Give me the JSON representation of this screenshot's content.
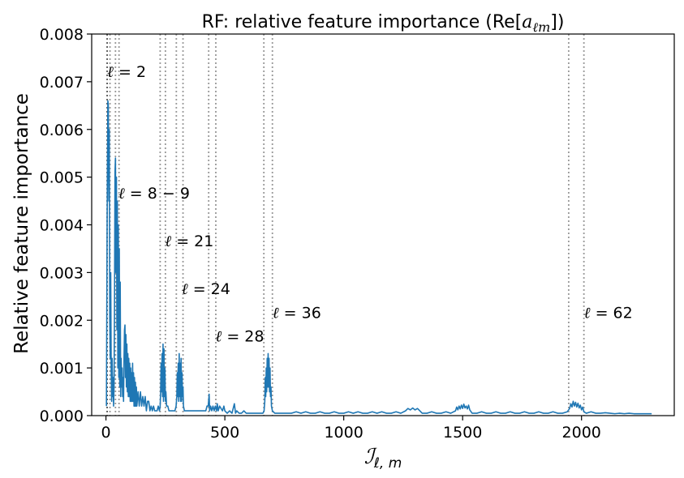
{
  "chart_data": {
    "type": "line",
    "title_prefix": "RF: relative feature importance (Re[",
    "title_var": "a",
    "title_sub": "ℓm",
    "title_suffix": "])",
    "ylabel": "Relative feature importance",
    "xlabel_symbol": "ℐ",
    "xlabel_sub": "ℓ, m",
    "xlim": [
      -60,
      2390
    ],
    "ylim": [
      0,
      0.008
    ],
    "xticks": [
      0,
      500,
      1000,
      1500,
      2000
    ],
    "yticks": [
      0.0,
      0.001,
      0.002,
      0.003,
      0.004,
      0.005,
      0.006,
      0.007,
      0.008
    ],
    "ytick_labels": [
      "0.000",
      "0.001",
      "0.002",
      "0.003",
      "0.004",
      "0.005",
      "0.006",
      "0.007",
      "0.008"
    ],
    "xtick_labels": [
      "0",
      "500",
      "1000",
      "1500",
      "2000"
    ],
    "grid": false,
    "series": [
      {
        "color": "#1f77b4",
        "points": [
          [
            2,
            0.0002
          ],
          [
            5,
            0.0041
          ],
          [
            8,
            0.0066
          ],
          [
            10,
            0.0065
          ],
          [
            12,
            0.0045
          ],
          [
            14,
            0.006
          ],
          [
            16,
            0.002
          ],
          [
            18,
            0.0012
          ],
          [
            20,
            0.003
          ],
          [
            22,
            0.001
          ],
          [
            24,
            0.0003
          ],
          [
            26,
            0.0012
          ],
          [
            28,
            0.0004
          ],
          [
            30,
            0.0008
          ],
          [
            32,
            0.0002
          ],
          [
            34,
            0.0006
          ],
          [
            36,
            0.0023
          ],
          [
            38,
            0.0051
          ],
          [
            40,
            0.0054
          ],
          [
            42,
            0.003
          ],
          [
            44,
            0.005
          ],
          [
            46,
            0.0018
          ],
          [
            48,
            0.0045
          ],
          [
            50,
            0.001
          ],
          [
            52,
            0.004
          ],
          [
            54,
            0.0008
          ],
          [
            56,
            0.0035
          ],
          [
            58,
            0.0006
          ],
          [
            60,
            0.0028
          ],
          [
            62,
            0.0004
          ],
          [
            64,
            0.0012
          ],
          [
            66,
            0.0006
          ],
          [
            68,
            0.001
          ],
          [
            70,
            0.0004
          ],
          [
            72,
            0.0008
          ],
          [
            74,
            0.0003
          ],
          [
            76,
            0.0012
          ],
          [
            78,
            0.0018
          ],
          [
            80,
            0.0019
          ],
          [
            82,
            0.0008
          ],
          [
            84,
            0.0017
          ],
          [
            86,
            0.0006
          ],
          [
            88,
            0.0015
          ],
          [
            90,
            0.0005
          ],
          [
            92,
            0.0013
          ],
          [
            94,
            0.0004
          ],
          [
            96,
            0.0012
          ],
          [
            98,
            0.0004
          ],
          [
            100,
            0.0011
          ],
          [
            102,
            0.0003
          ],
          [
            104,
            0.001
          ],
          [
            106,
            0.0003
          ],
          [
            108,
            0.0009
          ],
          [
            110,
            0.0003
          ],
          [
            112,
            0.0011
          ],
          [
            114,
            0.0003
          ],
          [
            116,
            0.0009
          ],
          [
            118,
            0.0002
          ],
          [
            120,
            0.0008
          ],
          [
            122,
            0.0002
          ],
          [
            124,
            0.0007
          ],
          [
            126,
            0.0002
          ],
          [
            128,
            0.0006
          ],
          [
            130,
            0.0002
          ],
          [
            135,
            0.0005
          ],
          [
            140,
            0.0002
          ],
          [
            145,
            0.0005
          ],
          [
            150,
            0.0002
          ],
          [
            155,
            0.0004
          ],
          [
            160,
            0.0002
          ],
          [
            165,
            0.0004
          ],
          [
            170,
            0.0001
          ],
          [
            175,
            0.0003
          ],
          [
            180,
            0.0003
          ],
          [
            185,
            0.0001
          ],
          [
            190,
            0.0002
          ],
          [
            195,
            0.0001
          ],
          [
            200,
            0.0002
          ],
          [
            205,
            0.0001
          ],
          [
            210,
            0.0001
          ],
          [
            215,
            0.0001
          ],
          [
            220,
            0.0002
          ],
          [
            225,
            0.0001
          ],
          [
            228,
            0.0002
          ],
          [
            230,
            0.0005
          ],
          [
            232,
            0.0011
          ],
          [
            234,
            0.0005
          ],
          [
            236,
            0.0013
          ],
          [
            238,
            0.0004
          ],
          [
            240,
            0.0015
          ],
          [
            242,
            0.0003
          ],
          [
            244,
            0.0014
          ],
          [
            246,
            0.0004
          ],
          [
            248,
            0.001
          ],
          [
            250,
            0.0003
          ],
          [
            252,
            0.0005
          ],
          [
            255,
            0.0002
          ],
          [
            260,
            0.0002
          ],
          [
            265,
            0.0001
          ],
          [
            270,
            0.0001
          ],
          [
            275,
            0.0001
          ],
          [
            280,
            0.0001
          ],
          [
            285,
            0.0001
          ],
          [
            290,
            0.0001
          ],
          [
            295,
            0.0002
          ],
          [
            298,
            0.0004
          ],
          [
            300,
            0.0009
          ],
          [
            302,
            0.0004
          ],
          [
            304,
            0.0011
          ],
          [
            306,
            0.0003
          ],
          [
            308,
            0.0013
          ],
          [
            310,
            0.0004
          ],
          [
            312,
            0.0011
          ],
          [
            314,
            0.0003
          ],
          [
            316,
            0.0012
          ],
          [
            318,
            0.0003
          ],
          [
            320,
            0.0009
          ],
          [
            322,
            0.0004
          ],
          [
            324,
            0.0006
          ],
          [
            326,
            0.0002
          ],
          [
            330,
            0.0001
          ],
          [
            340,
            0.0001
          ],
          [
            350,
            0.0001
          ],
          [
            360,
            0.0001
          ],
          [
            370,
            0.0001
          ],
          [
            380,
            0.0001
          ],
          [
            390,
            0.0001
          ],
          [
            400,
            0.0001
          ],
          [
            410,
            0.0001
          ],
          [
            420,
            0.0001
          ],
          [
            425,
            0.0002
          ],
          [
            430,
            0.0002
          ],
          [
            434,
            0.00045
          ],
          [
            436,
            0.0001
          ],
          [
            440,
            0.0002
          ],
          [
            445,
            0.0001
          ],
          [
            450,
            0.0002
          ],
          [
            455,
            0.0001
          ],
          [
            460,
            0.0002
          ],
          [
            465,
            0.0001
          ],
          [
            468,
            0.00025
          ],
          [
            472,
            0.0001
          ],
          [
            478,
            0.0002
          ],
          [
            484,
            0.00015
          ],
          [
            490,
            0.0001
          ],
          [
            496,
            0.0002
          ],
          [
            500,
            0.0001
          ],
          [
            510,
            5e-05
          ],
          [
            520,
            0.0001
          ],
          [
            530,
            5e-05
          ],
          [
            540,
            0.00025
          ],
          [
            545,
            5e-05
          ],
          [
            550,
            0.0001
          ],
          [
            560,
            5e-05
          ],
          [
            570,
            5e-05
          ],
          [
            580,
            0.0001
          ],
          [
            590,
            5e-05
          ],
          [
            600,
            5e-05
          ],
          [
            610,
            5e-05
          ],
          [
            620,
            5e-05
          ],
          [
            630,
            5e-05
          ],
          [
            640,
            5e-05
          ],
          [
            650,
            5e-05
          ],
          [
            660,
            5e-05
          ],
          [
            665,
            0.0001
          ],
          [
            668,
            0.0003
          ],
          [
            670,
            0.0008
          ],
          [
            672,
            0.0004
          ],
          [
            674,
            0.001
          ],
          [
            676,
            0.0005
          ],
          [
            678,
            0.0012
          ],
          [
            680,
            0.0006
          ],
          [
            682,
            0.0013
          ],
          [
            684,
            0.0006
          ],
          [
            686,
            0.0012
          ],
          [
            688,
            0.0005
          ],
          [
            690,
            0.001
          ],
          [
            692,
            0.0004
          ],
          [
            694,
            0.0006
          ],
          [
            696,
            0.0002
          ],
          [
            700,
            0.0001
          ],
          [
            710,
            5e-05
          ],
          [
            720,
            5e-05
          ],
          [
            740,
            5e-05
          ],
          [
            760,
            5e-05
          ],
          [
            780,
            5e-05
          ],
          [
            800,
            8e-05
          ],
          [
            820,
            5e-05
          ],
          [
            840,
            8e-05
          ],
          [
            860,
            5e-05
          ],
          [
            880,
            5e-05
          ],
          [
            900,
            8e-05
          ],
          [
            920,
            5e-05
          ],
          [
            940,
            5e-05
          ],
          [
            960,
            8e-05
          ],
          [
            980,
            5e-05
          ],
          [
            1000,
            5e-05
          ],
          [
            1020,
            8e-05
          ],
          [
            1040,
            5e-05
          ],
          [
            1060,
            8e-05
          ],
          [
            1080,
            5e-05
          ],
          [
            1100,
            5e-05
          ],
          [
            1120,
            8e-05
          ],
          [
            1140,
            5e-05
          ],
          [
            1160,
            8e-05
          ],
          [
            1180,
            5e-05
          ],
          [
            1200,
            5e-05
          ],
          [
            1220,
            8e-05
          ],
          [
            1240,
            5e-05
          ],
          [
            1260,
            0.0001
          ],
          [
            1270,
            0.00015
          ],
          [
            1280,
            0.00012
          ],
          [
            1290,
            0.00016
          ],
          [
            1300,
            0.00012
          ],
          [
            1310,
            0.00015
          ],
          [
            1320,
            0.0001
          ],
          [
            1330,
            5e-05
          ],
          [
            1350,
            5e-05
          ],
          [
            1370,
            8e-05
          ],
          [
            1390,
            5e-05
          ],
          [
            1410,
            5e-05
          ],
          [
            1430,
            8e-05
          ],
          [
            1450,
            5e-05
          ],
          [
            1470,
            0.0001
          ],
          [
            1475,
            0.00018
          ],
          [
            1480,
            0.00012
          ],
          [
            1485,
            0.0002
          ],
          [
            1490,
            0.00014
          ],
          [
            1495,
            0.00022
          ],
          [
            1500,
            0.00015
          ],
          [
            1505,
            0.00024
          ],
          [
            1510,
            0.00016
          ],
          [
            1515,
            0.0002
          ],
          [
            1520,
            0.00014
          ],
          [
            1525,
            0.00022
          ],
          [
            1530,
            0.00012
          ],
          [
            1540,
            5e-05
          ],
          [
            1560,
            5e-05
          ],
          [
            1580,
            8e-05
          ],
          [
            1600,
            5e-05
          ],
          [
            1620,
            5e-05
          ],
          [
            1640,
            8e-05
          ],
          [
            1660,
            5e-05
          ],
          [
            1680,
            5e-05
          ],
          [
            1700,
            8e-05
          ],
          [
            1720,
            5e-05
          ],
          [
            1740,
            5e-05
          ],
          [
            1760,
            8e-05
          ],
          [
            1780,
            5e-05
          ],
          [
            1800,
            5e-05
          ],
          [
            1820,
            8e-05
          ],
          [
            1840,
            5e-05
          ],
          [
            1860,
            5e-05
          ],
          [
            1880,
            8e-05
          ],
          [
            1900,
            5e-05
          ],
          [
            1920,
            5e-05
          ],
          [
            1940,
            8e-05
          ],
          [
            1950,
            0.00015
          ],
          [
            1955,
            0.00025
          ],
          [
            1960,
            0.00018
          ],
          [
            1965,
            0.0003
          ],
          [
            1970,
            0.0002
          ],
          [
            1975,
            0.00028
          ],
          [
            1980,
            0.00018
          ],
          [
            1985,
            0.00026
          ],
          [
            1990,
            0.00016
          ],
          [
            1995,
            0.00022
          ],
          [
            2000,
            0.00012
          ],
          [
            2005,
            0.00018
          ],
          [
            2010,
            8e-05
          ],
          [
            2020,
            5e-05
          ],
          [
            2040,
            8e-05
          ],
          [
            2060,
            5e-05
          ],
          [
            2080,
            5e-05
          ],
          [
            2100,
            6e-05
          ],
          [
            2120,
            5e-05
          ],
          [
            2140,
            4e-05
          ],
          [
            2160,
            5e-05
          ],
          [
            2180,
            4e-05
          ],
          [
            2200,
            5e-05
          ],
          [
            2220,
            4e-05
          ],
          [
            2240,
            4e-05
          ],
          [
            2260,
            4e-05
          ],
          [
            2280,
            4e-05
          ],
          [
            2295,
            4e-05
          ]
        ]
      }
    ],
    "vlines": [
      {
        "x": 5,
        "color": "#555555"
      },
      {
        "x": 17,
        "color": "#999999"
      },
      {
        "x": 40,
        "color": "#999999"
      },
      {
        "x": 55,
        "color": "#999999"
      },
      {
        "x": 228,
        "color": "#999999"
      },
      {
        "x": 250,
        "color": "#999999"
      },
      {
        "x": 296,
        "color": "#999999"
      },
      {
        "x": 324,
        "color": "#999999"
      },
      {
        "x": 432,
        "color": "#999999"
      },
      {
        "x": 462,
        "color": "#999999"
      },
      {
        "x": 664,
        "color": "#999999"
      },
      {
        "x": 700,
        "color": "#999999"
      },
      {
        "x": 1946,
        "color": "#999999"
      },
      {
        "x": 2010,
        "color": "#999999"
      }
    ],
    "annotations": [
      {
        "x": 5,
        "y": 0.0071,
        "ell": "ℓ",
        "text": " = 2"
      },
      {
        "x": 52,
        "y": 0.00455,
        "ell": "ℓ",
        "text": " = 8 − 9"
      },
      {
        "x": 248,
        "y": 0.00355,
        "ell": "ℓ",
        "text": " = 21"
      },
      {
        "x": 318,
        "y": 0.00255,
        "ell": "ℓ",
        "text": " = 24"
      },
      {
        "x": 460,
        "y": 0.00155,
        "ell": "ℓ",
        "text": " = 28"
      },
      {
        "x": 700,
        "y": 0.00205,
        "ell": "ℓ",
        "text": " = 36"
      },
      {
        "x": 2010,
        "y": 0.00205,
        "ell": "ℓ",
        "text": " = 62"
      }
    ]
  }
}
